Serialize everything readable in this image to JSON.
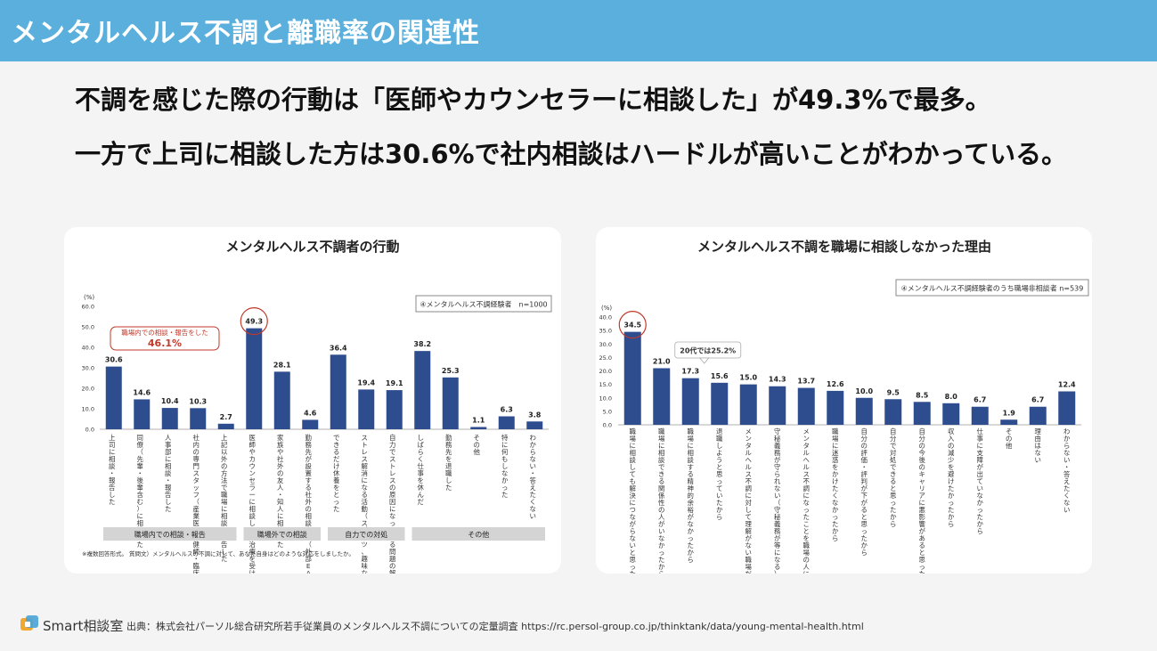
{
  "header": {
    "title": "メンタルヘルス不調と離職率の関連性"
  },
  "headline": {
    "line1": "不調を感じた際の行動は「医師やカウンセラーに相談した」が49.3%で最多。",
    "line2": "一方で上司に相談した方は30.6%で社内相談はハードルが高いことがわかっている。"
  },
  "footer": {
    "logo": "Smart相談室",
    "source": "出典：株式会社パーソル総合研究所若手従業員のメンタルヘルス不調についての定量調査 https://rc.persol-group.co.jp/thinktank/data/young-mental-health.html"
  },
  "colors": {
    "header": "#5aafdc",
    "bar": "#2e4d8f",
    "highlight": "#c0392b",
    "group": "#d4d4d4"
  },
  "chart_data": [
    {
      "type": "bar",
      "title": "メンタルヘルス不調者の行動",
      "ylabel": "(%)",
      "ylim": [
        0,
        60
      ],
      "yticks": [
        "0.0",
        "10.0",
        "20.0",
        "30.0",
        "40.0",
        "50.0",
        "60.0"
      ],
      "legend": "④メンタルヘルス不調経験者　n=1000",
      "categories": [
        "上司に相談・報告した",
        "同僚（先輩・後輩含む）に相談した",
        "人事部に相談・報告した",
        "社内の専門スタッフ（産業医・保健師・臨床心理士等）に相談した",
        "上記以外の方法で職場に相談・報告した",
        "医師やカウンセラーに相談した・治療を受けた",
        "家族や社外の友人・知人に相談した",
        "勤務先が設置する社外の相談窓口（外部EAP）に相談した",
        "できるだけ休養をとった",
        "ストレス解消になる活動（スポーツ、趣味など）を増やした",
        "自力でストレスの原因になっている問題の解決に取り組んだ",
        "しばらく仕事を休んだ",
        "勤務先を退職した",
        "その他",
        "特に何もしなかった",
        "わからない・答えたくない"
      ],
      "values": [
        30.6,
        14.6,
        10.4,
        10.3,
        2.7,
        49.3,
        28.1,
        4.6,
        36.4,
        19.4,
        19.1,
        38.2,
        25.3,
        1.1,
        6.3,
        3.8
      ],
      "value_labels": [
        "30.6",
        "14.6",
        "10.4",
        "10.3",
        "2.7",
        "49.3",
        "28.1",
        "4.6",
        "36.4",
        "19.4",
        "19.1",
        "38.2",
        "25.3",
        "1.1",
        "6.3",
        "3.8"
      ],
      "highlight_index": 5,
      "callout": {
        "title": "職場内での相談・報告をした",
        "value": "46.1%"
      },
      "groups": [
        {
          "label": "職場内での相談・報告",
          "start": 0,
          "end": 4
        },
        {
          "label": "職場外での相談",
          "start": 5,
          "end": 7
        },
        {
          "label": "自力での対処",
          "start": 8,
          "end": 10
        },
        {
          "label": "その他",
          "start": 11,
          "end": 15
        }
      ],
      "note": "※複数回答形式。 質問文）メンタルヘルスの不調に対して、あなた自身はどのような対応をしましたか。"
    },
    {
      "type": "bar",
      "title": "メンタルヘルス不調を職場に相談しなかった理由",
      "ylabel": "(%)",
      "ylim": [
        0,
        40
      ],
      "yticks": [
        "0.0",
        "5.0",
        "10.0",
        "15.0",
        "20.0",
        "25.0",
        "30.0",
        "35.0",
        "40.0"
      ],
      "legend": "④メンタルヘルス不調経験者のうち職場非相談者 n=539",
      "categories": [
        "職場に相談しても解決につながらないと思ったから",
        "職場に相談できる関係性の人がいなかったから",
        "職場に相談する精神的余裕がなかったから",
        "退職しようと思っていたから",
        "メンタルヘルス不調に対して理解がない職場だったから",
        "守秘義務が守られない（守秘義務が等になる）と思ったから",
        "メンタルヘルス不調になったことを職場の人に知られたくなかったから",
        "職場に迷惑をかけたくなかったから",
        "自分の評価・評判が下がると思ったから",
        "自分で対処できると思ったから",
        "自分の今後のキャリアに悪影響があると思ったから",
        "収入の減少を避けたかったから",
        "仕事に支障が出ていなかったから",
        "その他",
        "理由はない",
        "わからない・答えたくない"
      ],
      "values": [
        34.5,
        21.0,
        17.3,
        15.6,
        15.0,
        14.3,
        13.7,
        12.6,
        10.0,
        9.5,
        8.5,
        8.0,
        6.7,
        1.9,
        6.7,
        12.4
      ],
      "value_labels": [
        "34.5",
        "21.0",
        "17.3",
        "15.6",
        "15.0",
        "14.3",
        "13.7",
        "12.6",
        "10.0",
        "9.5",
        "8.5",
        "8.0",
        "6.7",
        "1.9",
        "6.7",
        "12.4"
      ],
      "highlight_index": 0,
      "callout": {
        "text": "20代では25.2%",
        "index": 3
      }
    }
  ]
}
